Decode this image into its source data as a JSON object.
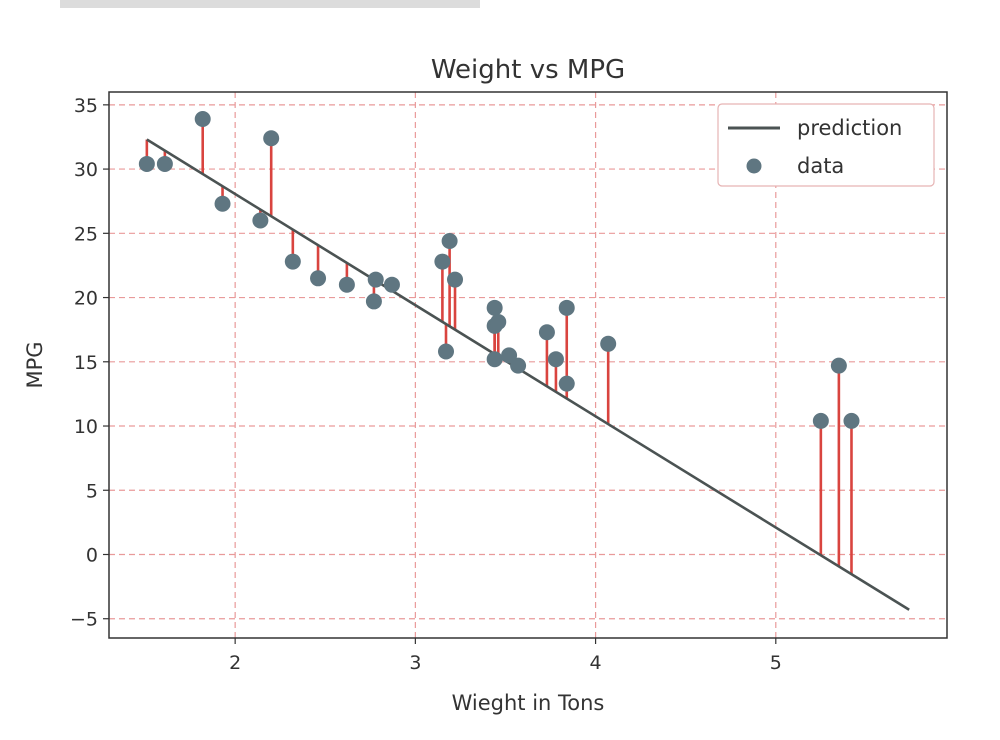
{
  "chart_data": {
    "type": "scatter",
    "title": "Weight vs MPG",
    "xlabel": "Wieght in Tons",
    "ylabel": "MPG",
    "xlim": [
      1.3,
      5.95
    ],
    "ylim": [
      -6.5,
      36
    ],
    "xticks": [
      2,
      3,
      4,
      5
    ],
    "xtick_labels": [
      "2",
      "3",
      "4",
      "5"
    ],
    "yticks": [
      -5,
      0,
      5,
      10,
      15,
      20,
      25,
      30,
      35
    ],
    "ytick_labels": [
      "−5",
      "0",
      "5",
      "10",
      "15",
      "20",
      "25",
      "30",
      "35"
    ],
    "grid": true,
    "legend_position": "top-right",
    "colors": {
      "line": "#4b5353",
      "points": "#5f7681",
      "residuals": "#d9443f",
      "grid": "#e99a9a"
    },
    "prediction": {
      "name": "prediction",
      "x": [
        1.51,
        5.74
      ],
      "y": [
        32.3,
        -4.3
      ]
    },
    "data": {
      "name": "data",
      "x": [
        1.51,
        1.61,
        1.82,
        1.93,
        2.14,
        2.2,
        2.32,
        2.46,
        2.62,
        2.77,
        2.78,
        2.87,
        3.15,
        3.17,
        3.19,
        3.22,
        3.44,
        3.44,
        3.44,
        3.46,
        3.52,
        3.57,
        3.73,
        3.78,
        3.84,
        3.84,
        4.07,
        5.25,
        5.35,
        5.42
      ],
      "y": [
        30.4,
        30.4,
        33.9,
        27.3,
        26.0,
        32.4,
        22.8,
        21.5,
        21.0,
        19.7,
        21.4,
        21.0,
        22.8,
        15.8,
        24.4,
        21.4,
        19.2,
        17.8,
        15.2,
        18.1,
        15.5,
        14.7,
        17.3,
        15.2,
        19.2,
        13.3,
        16.4,
        10.4,
        14.7,
        10.4
      ]
    }
  }
}
